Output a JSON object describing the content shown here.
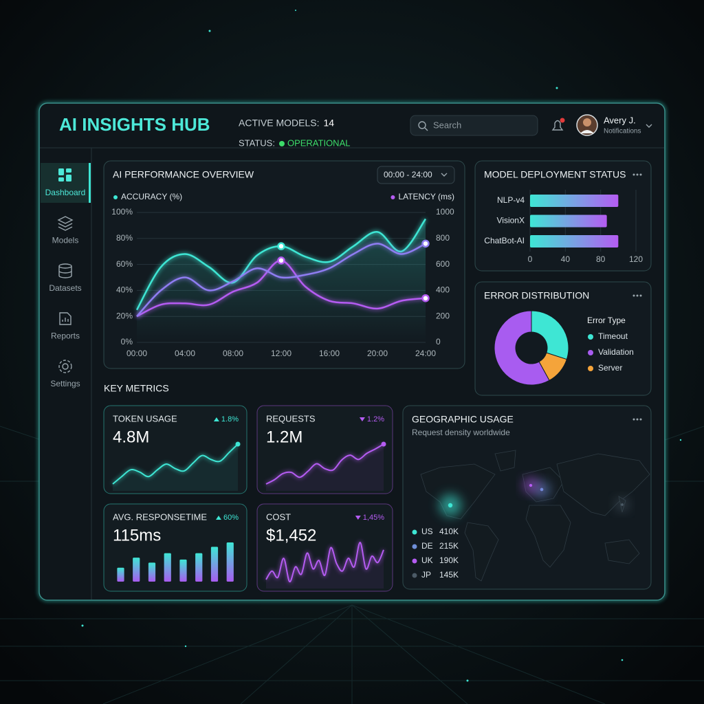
{
  "header": {
    "title": "AI INSIGHTS HUB",
    "active_models_label": "ACTIVE MODELS:",
    "active_models": 14,
    "status_label": "STATUS:",
    "status": "OPERATIONAL",
    "status_color": "#3ddc6a",
    "search_placeholder": "Search",
    "user_name": "Avery J.",
    "user_subtitle": "Notifications"
  },
  "sidebar": {
    "items": [
      "Dashboard",
      "Models",
      "Datasets",
      "Reports",
      "Settings"
    ],
    "active": 0
  },
  "key_metrics_title": "KEY METRICS",
  "chart_data": [
    {
      "type": "line",
      "title": "AI PERFORMANCE OVERVIEW",
      "range_label": "00:00 - 24:00",
      "x": [
        0,
        2,
        4,
        6,
        8,
        10,
        12,
        14,
        16,
        18,
        20,
        22,
        24
      ],
      "xlim": [
        0,
        24
      ],
      "xticks": [
        {
          "value": 0,
          "label": "00:00"
        },
        {
          "value": 4,
          "label": "04:00"
        },
        {
          "value": 8,
          "label": "08:00"
        },
        {
          "value": 12,
          "label": "12:00"
        },
        {
          "value": 16,
          "label": "16:00"
        },
        {
          "value": 20,
          "label": "20:00"
        },
        {
          "value": 24,
          "label": "24:00"
        }
      ],
      "ylim": [
        0,
        100
      ],
      "yticks": [
        {
          "value": 0,
          "label": "0%"
        },
        {
          "value": 20,
          "label": "20%"
        },
        {
          "value": 40,
          "label": "40%"
        },
        {
          "value": 60,
          "label": "60%"
        },
        {
          "value": 80,
          "label": "80%"
        },
        {
          "value": 100,
          "label": "100%"
        }
      ],
      "y2lim": [
        0,
        1000
      ],
      "y2ticks": [
        0,
        200,
        400,
        600,
        800,
        1000
      ],
      "grid": true,
      "series": [
        {
          "name": "ACCURACY (%)",
          "color": "#3ee6d4",
          "values": [
            25,
            58,
            68,
            58,
            46,
            67,
            74,
            66,
            62,
            74,
            85,
            70,
            95
          ],
          "highlight": [
            6
          ]
        },
        {
          "name": "LATENCY (ms)",
          "color": "#b55cf2",
          "axis": "y2",
          "values": [
            200,
            290,
            300,
            290,
            390,
            460,
            630,
            430,
            320,
            300,
            260,
            320,
            340
          ],
          "highlight": [
            6,
            12
          ]
        },
        {
          "color": "#8f7df2",
          "values": [
            20,
            40,
            50,
            40,
            47,
            57,
            50,
            52,
            57,
            68,
            76,
            68,
            76
          ],
          "highlight": [
            12
          ]
        }
      ]
    },
    {
      "type": "bar",
      "orientation": "horizontal",
      "title": "MODEL DEPLOYMENT STATUS",
      "categories": [
        "NLP-v4",
        "VisionX",
        "ChatBot-AI"
      ],
      "values": [
        100,
        87,
        100
      ],
      "xlim": [
        0,
        120
      ],
      "xticks": [
        0,
        40,
        80,
        120
      ],
      "colors": [
        "#3ee6d4",
        "#b55cf2"
      ]
    },
    {
      "type": "donut",
      "title": "ERROR DISTRIBUTION",
      "legend_title": "Error Type",
      "categories": [
        "Timeout",
        "Validation",
        "Server"
      ],
      "values": [
        30,
        58,
        12
      ],
      "colors": [
        "#3ee6d4",
        "#a85cf0",
        "#f5a43a"
      ]
    }
  ],
  "metrics": [
    {
      "title": "TOKEN USAGE",
      "value": "4.8M",
      "change": "1.8%",
      "trend": "up",
      "type": "line",
      "color": "#3ee6d4",
      "end_dot": true,
      "values": [
        5,
        18,
        30,
        26,
        18,
        30,
        40,
        32,
        28,
        42,
        55,
        48,
        45,
        60,
        75
      ]
    },
    {
      "title": "REQUESTS",
      "value": "1.2M",
      "change": "1.2%",
      "trend": "down",
      "type": "line",
      "color": "#b55cf2",
      "end_dot": true,
      "values": [
        5,
        12,
        22,
        24,
        16,
        26,
        38,
        30,
        28,
        44,
        52,
        45,
        55,
        62,
        70
      ]
    },
    {
      "title": "AVG. RESPONSETIME",
      "value": "115ms",
      "change": "60%",
      "trend": "up",
      "type": "bar",
      "color": "#3ee6d4",
      "values": [
        22,
        38,
        30,
        45,
        35,
        45,
        55,
        62
      ]
    },
    {
      "title": "COST",
      "value": "$1,452",
      "change": "1,45%",
      "trend": "down",
      "type": "line",
      "color": "#b55cf2",
      "end_dot": false,
      "values": [
        10,
        18,
        12,
        30,
        8,
        22,
        15,
        35,
        20,
        28,
        14,
        40,
        25,
        18,
        30,
        22,
        45,
        20,
        32,
        26,
        38
      ]
    }
  ],
  "geo": {
    "title": "GEOGRAPHIC USAGE",
    "subtitle": "Request density worldwide",
    "regions": [
      {
        "code": "US",
        "value": 410000,
        "label": "410K",
        "color": "#3ee6d4"
      },
      {
        "code": "DE",
        "value": 215000,
        "label": "215K",
        "color": "#6f8fd8"
      },
      {
        "code": "UK",
        "value": 190000,
        "label": "190K",
        "color": "#b55cf2"
      },
      {
        "code": "JP",
        "value": 145000,
        "label": "145K",
        "color": "#4b5a66"
      }
    ]
  }
}
